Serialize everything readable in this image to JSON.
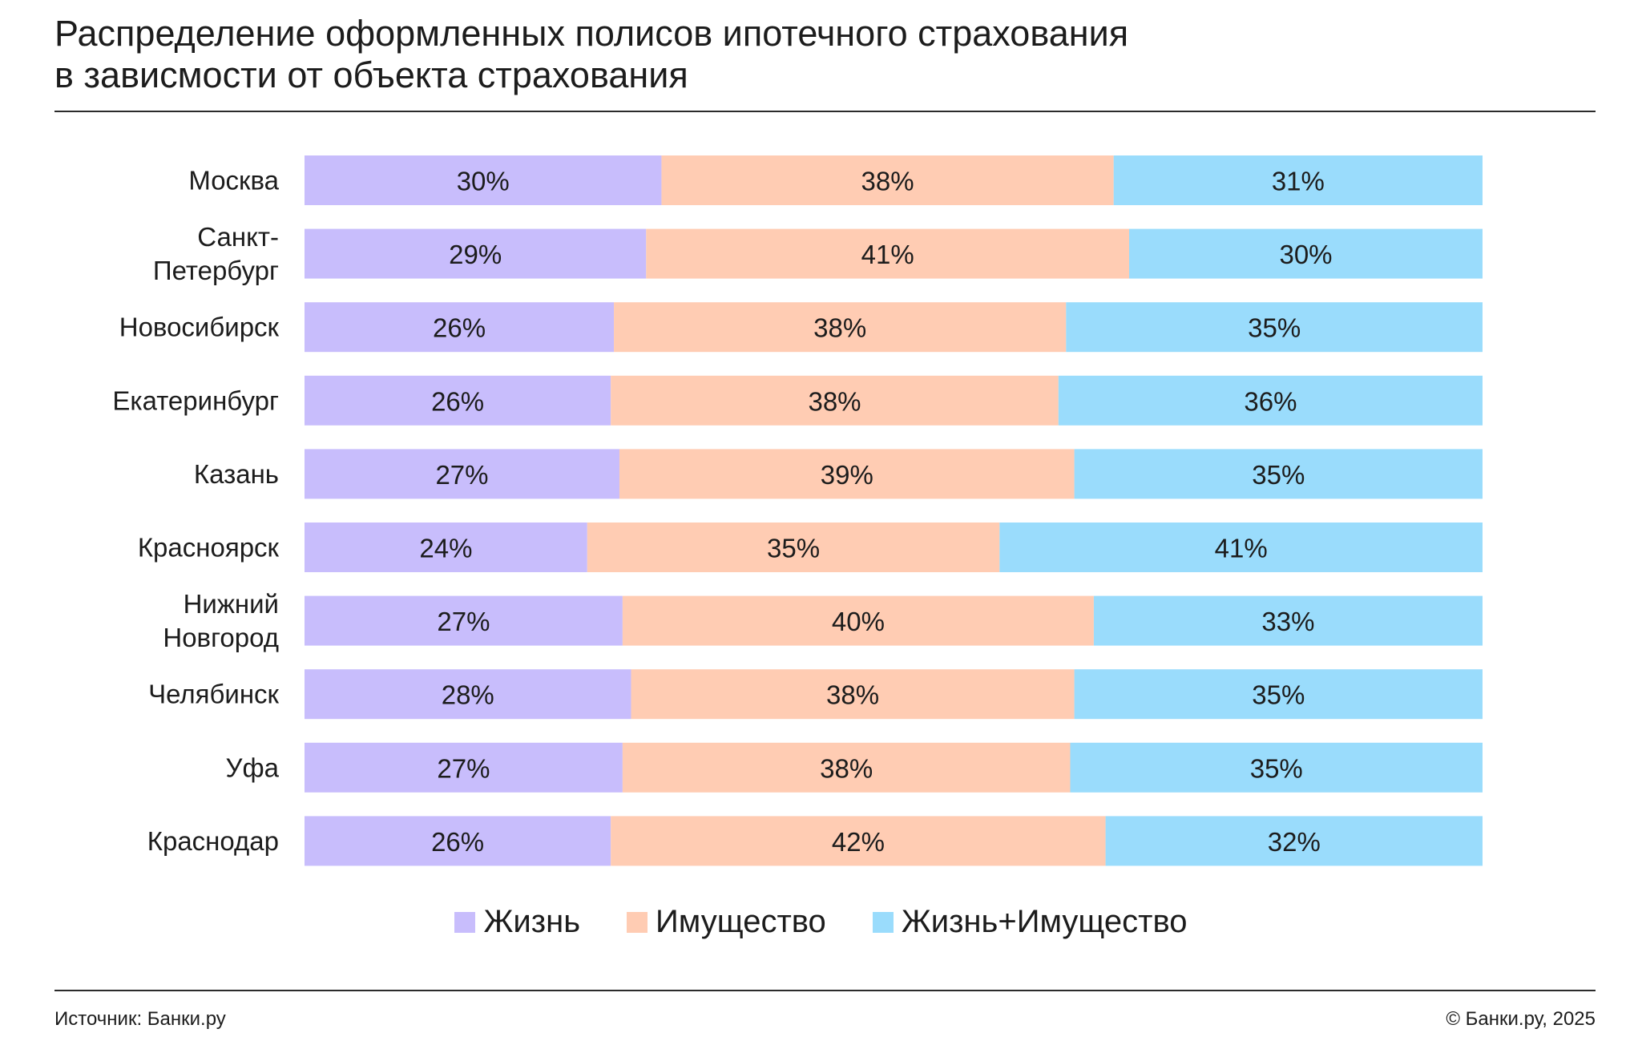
{
  "header": {
    "title_line1": "Распределение оформленных полисов ипотечного страхования",
    "title_line2": "в зависмости от объекта страхования"
  },
  "footer": {
    "source": "Источник: Банки.ру",
    "copyright": "© Банки.ру, 2025"
  },
  "colors": {
    "life": "#c8bdfc",
    "property": "#ffccb3",
    "life_property": "#9adcfc"
  },
  "chart_data": {
    "type": "bar",
    "orientation": "horizontal",
    "stacked": true,
    "title": "Распределение оформленных полисов ипотечного страхования в зависмости от объекта страхования",
    "categories": [
      "Москва",
      "Санкт-Петербург",
      "Новосибирск",
      "Екатеринбург",
      "Казань",
      "Красноярск",
      "Нижний Новгород",
      "Челябинск",
      "Уфа",
      "Краснодар"
    ],
    "category_lines": [
      [
        "Москва"
      ],
      [
        "Санкт-",
        "Петербург"
      ],
      [
        "Новосибирск"
      ],
      [
        "Екатеринбург"
      ],
      [
        "Казань"
      ],
      [
        "Красноярск"
      ],
      [
        "Нижний",
        "Новгород"
      ],
      [
        "Челябинск"
      ],
      [
        "Уфа"
      ],
      [
        "Краснодар"
      ]
    ],
    "series": [
      {
        "name": "Жизнь",
        "color": "#c8bdfc",
        "values": [
          30,
          29,
          26,
          26,
          27,
          24,
          27,
          28,
          27,
          26
        ]
      },
      {
        "name": "Имущество",
        "color": "#ffccb3",
        "values": [
          38,
          41,
          38,
          38,
          39,
          35,
          40,
          38,
          38,
          42
        ]
      },
      {
        "name": "Жизнь+Имущество",
        "color": "#9adcfc",
        "values": [
          31,
          30,
          35,
          36,
          35,
          41,
          33,
          35,
          35,
          32
        ]
      }
    ],
    "value_suffix": "%",
    "legend_position": "bottom",
    "grid": false
  }
}
